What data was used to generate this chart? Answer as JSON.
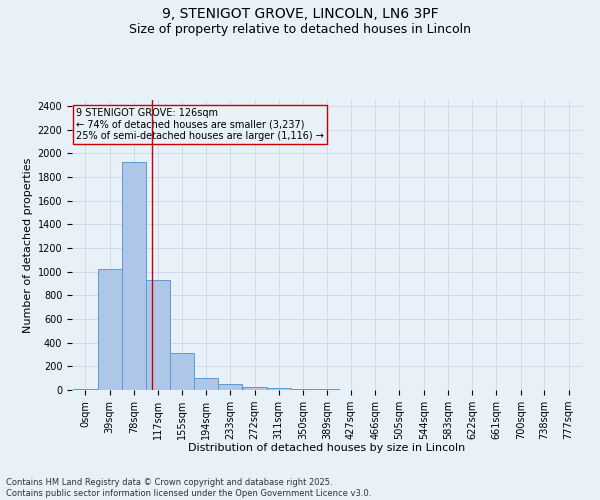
{
  "title": "9, STENIGOT GROVE, LINCOLN, LN6 3PF",
  "subtitle": "Size of property relative to detached houses in Lincoln",
  "xlabel": "Distribution of detached houses by size in Lincoln",
  "ylabel": "Number of detached properties",
  "bin_labels": [
    "0sqm",
    "39sqm",
    "78sqm",
    "117sqm",
    "155sqm",
    "194sqm",
    "233sqm",
    "272sqm",
    "311sqm",
    "350sqm",
    "389sqm",
    "427sqm",
    "466sqm",
    "505sqm",
    "544sqm",
    "583sqm",
    "622sqm",
    "661sqm",
    "700sqm",
    "738sqm",
    "777sqm"
  ],
  "bin_edges": [
    0,
    39,
    78,
    117,
    155,
    194,
    233,
    272,
    311,
    350,
    389,
    427,
    466,
    505,
    544,
    583,
    622,
    661,
    700,
    738,
    777
  ],
  "bar_heights": [
    10,
    1025,
    1925,
    930,
    315,
    105,
    50,
    25,
    15,
    10,
    5,
    0,
    0,
    0,
    0,
    0,
    0,
    0,
    0,
    0
  ],
  "bar_color": "#aec6e8",
  "bar_edgecolor": "#5b9bd5",
  "grid_color": "#c8d8ea",
  "background_color": "#e8f0f8",
  "property_line_x": 126,
  "property_line_color": "#cc0000",
  "annotation_text": "9 STENIGOT GROVE: 126sqm\n← 74% of detached houses are smaller (3,237)\n25% of semi-detached houses are larger (1,116) →",
  "annotation_box_color": "#cc0000",
  "ylim": [
    0,
    2450
  ],
  "yticks": [
    0,
    200,
    400,
    600,
    800,
    1000,
    1200,
    1400,
    1600,
    1800,
    2000,
    2200,
    2400
  ],
  "footnote": "Contains HM Land Registry data © Crown copyright and database right 2025.\nContains public sector information licensed under the Open Government Licence v3.0.",
  "title_fontsize": 10,
  "subtitle_fontsize": 9,
  "axis_label_fontsize": 8,
  "tick_fontsize": 7,
  "annotation_fontsize": 7,
  "footnote_fontsize": 6
}
